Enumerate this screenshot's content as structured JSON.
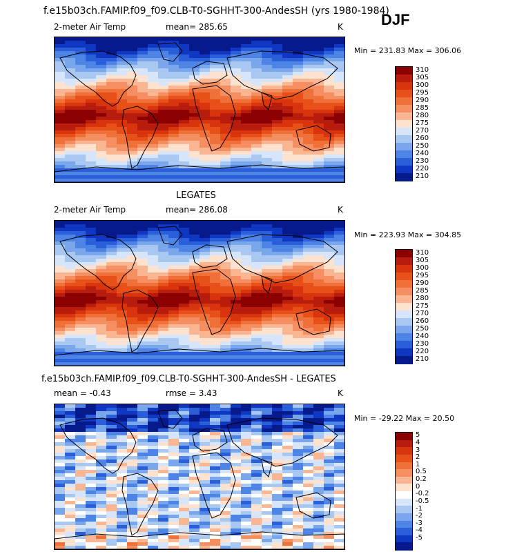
{
  "header": {
    "title": "f.e15b03ch.FAMIP.f09_f09.CLB-T0-SGHHT-300-AndesSH (yrs 1980-1984)",
    "season": "DJF"
  },
  "panels": [
    {
      "variable": "2-meter Air Temp",
      "mean_text": "mean= 285.65",
      "units": "K",
      "stats_text": "Min = 231.83  Max = 306.06"
    },
    {
      "heading": "LEGATES",
      "variable": "2-meter Air Temp",
      "mean_text": "mean= 286.08",
      "units": "K",
      "stats_text": "Min = 223.93  Max = 304.85"
    },
    {
      "heading": "f.e15b03ch.FAMIP.f09_f09.CLB-T0-SGHHT-300-AndesSH - LEGATES",
      "mean_text": "mean =    -0.43",
      "rmse_text": "rmse =    3.43",
      "units": "K",
      "stats_text": "Min = -29.22  Max =  20.50"
    }
  ],
  "chart_data": [
    {
      "type": "heatmap",
      "title": "f.e15b03ch.FAMIP.f09_f09.CLB-T0-SGHHT-300-AndesSH (yrs 1980-1984)",
      "variable": "2-meter Air Temp",
      "units": "K",
      "mean": 285.65,
      "min": 231.83,
      "max": 306.06,
      "colorbar_levels": [
        "310",
        "305",
        "300",
        "295",
        "290",
        "285",
        "280",
        "275",
        "270",
        "260",
        "250",
        "240",
        "230",
        "220",
        "210"
      ],
      "colorbar_colors": [
        "#8b0000",
        "#b81c0c",
        "#d8350e",
        "#e8501a",
        "#f0703a",
        "#f58f62",
        "#fab592",
        "#fde2cf",
        "#d6e5fa",
        "#a8c8f2",
        "#7aa7ec",
        "#4d84e6",
        "#2a5fd9",
        "#1037c2",
        "#061a8c"
      ]
    },
    {
      "type": "heatmap",
      "title": "LEGATES",
      "variable": "2-meter Air Temp",
      "units": "K",
      "mean": 286.08,
      "min": 223.93,
      "max": 304.85,
      "colorbar_levels": [
        "310",
        "305",
        "300",
        "295",
        "290",
        "285",
        "280",
        "275",
        "270",
        "260",
        "250",
        "240",
        "230",
        "220",
        "210"
      ],
      "colorbar_colors": [
        "#8b0000",
        "#b81c0c",
        "#d8350e",
        "#e8501a",
        "#f0703a",
        "#f58f62",
        "#fab592",
        "#fde2cf",
        "#d6e5fa",
        "#a8c8f2",
        "#7aa7ec",
        "#4d84e6",
        "#2a5fd9",
        "#1037c2",
        "#061a8c"
      ]
    },
    {
      "type": "heatmap",
      "title": "f.e15b03ch.FAMIP.f09_f09.CLB-T0-SGHHT-300-AndesSH - LEGATES",
      "units": "K",
      "mean": -0.43,
      "rmse": 3.43,
      "min": -29.22,
      "max": 20.5,
      "colorbar_levels": [
        "5",
        "4",
        "3",
        "2",
        "1",
        "0.5",
        "0.2",
        "0",
        "-0.2",
        "-0.5",
        "-1",
        "-2",
        "-3",
        "-4",
        "-5"
      ],
      "colorbar_colors": [
        "#8b0000",
        "#b81c0c",
        "#d8350e",
        "#e8501a",
        "#f0703a",
        "#f58f62",
        "#fab592",
        "#fde2cf",
        "#ffffff",
        "#d6e5fa",
        "#a8c8f2",
        "#7aa7ec",
        "#4d84e6",
        "#2a5fd9",
        "#1037c2",
        "#061a8c"
      ]
    }
  ]
}
